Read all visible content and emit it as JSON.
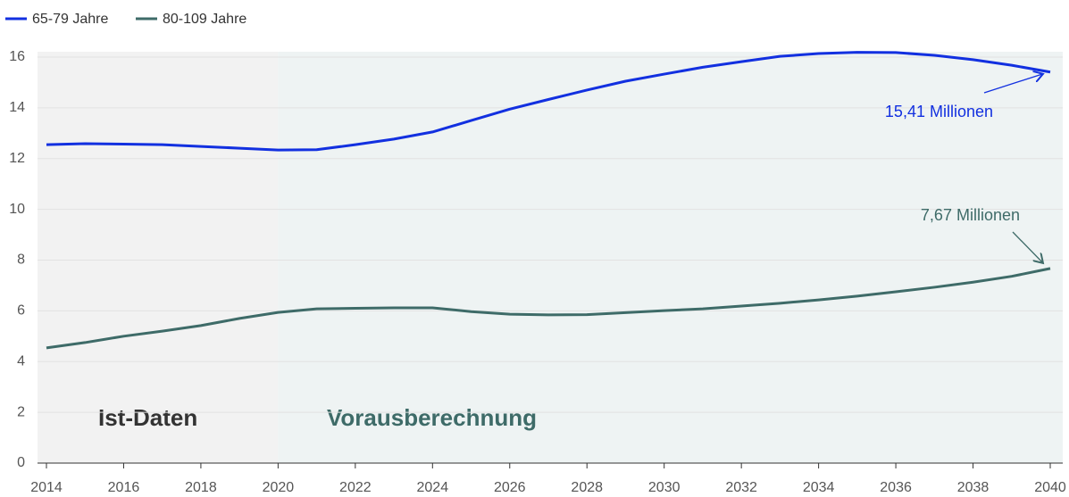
{
  "chart_data": {
    "type": "line",
    "x": [
      2014,
      2015,
      2016,
      2017,
      2018,
      2019,
      2020,
      2021,
      2022,
      2023,
      2024,
      2025,
      2026,
      2027,
      2028,
      2029,
      2030,
      2031,
      2032,
      2033,
      2034,
      2035,
      2036,
      2037,
      2038,
      2039,
      2040
    ],
    "series": [
      {
        "name": "65-79 Jahre",
        "color": "#1230e0",
        "values": [
          12.55,
          12.59,
          12.57,
          12.55,
          12.48,
          12.41,
          12.34,
          12.35,
          12.55,
          12.77,
          13.05,
          13.5,
          13.95,
          14.33,
          14.7,
          15.05,
          15.33,
          15.6,
          15.82,
          16.03,
          16.14,
          16.19,
          16.18,
          16.07,
          15.9,
          15.68,
          15.41
        ]
      },
      {
        "name": "80-109 Jahre",
        "color": "#3e6b68",
        "values": [
          4.54,
          4.75,
          5.0,
          5.2,
          5.42,
          5.7,
          5.94,
          6.08,
          6.1,
          6.12,
          6.12,
          5.97,
          5.87,
          5.84,
          5.85,
          5.93,
          6.01,
          6.08,
          6.19,
          6.3,
          6.43,
          6.58,
          6.75,
          6.93,
          7.13,
          7.36,
          7.67
        ]
      }
    ],
    "regions": [
      {
        "label": "Ist-Daten",
        "from": 2014,
        "to": 2020,
        "color": "#f2f2f2",
        "label_color": "#333333"
      },
      {
        "label": "Vorausberechnung",
        "from": 2020,
        "to": 2040,
        "color": "#eef3f3",
        "label_color": "#3e6b68"
      }
    ],
    "annotations": [
      {
        "text": "15,41 Millionen",
        "series": 0
      },
      {
        "text": "7,67 Millionen",
        "series": 1
      }
    ],
    "xlim": [
      2014,
      2040
    ],
    "xticks": [
      2014,
      2016,
      2018,
      2020,
      2022,
      2024,
      2026,
      2028,
      2030,
      2032,
      2034,
      2036,
      2038,
      2040
    ],
    "ylim": [
      0,
      16
    ],
    "yticks": [
      0,
      2,
      4,
      6,
      8,
      10,
      12,
      14,
      16
    ],
    "grid": true
  }
}
